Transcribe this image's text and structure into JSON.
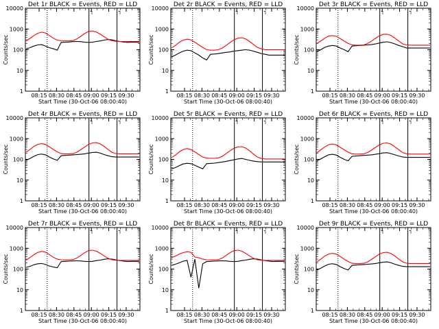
{
  "chart_data": [
    {
      "type": "line",
      "title": "Det 1r BLACK = Events, RED = LLD",
      "xlabel": "Start Time (30-Oct-06 08:00:40)",
      "ylabel": "Counts/sec",
      "yscale": "log",
      "ylim": [
        1,
        10000
      ],
      "yticks": [
        "1",
        "10",
        "100",
        "1000",
        "10000"
      ],
      "xticks": [
        "08:15",
        "08:30",
        "08:45",
        "09:00",
        "09:15",
        "09:30"
      ],
      "series": [
        {
          "name": "Events",
          "color": "#000000",
          "values": [
            110,
            125,
            150,
            170,
            175,
            150,
            125,
            110,
            95,
            225,
            230,
            235,
            245,
            250,
            245,
            230,
            225,
            230,
            250,
            265,
            290,
            310,
            300,
            270,
            250,
            235,
            225,
            230,
            230,
            230
          ]
        },
        {
          "name": "LLD",
          "color": "#ff0000",
          "values": [
            260,
            350,
            480,
            620,
            700,
            640,
            480,
            360,
            290,
            270,
            265,
            265,
            275,
            330,
            440,
            600,
            760,
            800,
            720,
            560,
            420,
            320,
            270,
            255,
            250,
            250,
            250,
            250,
            250,
            250
          ]
        }
      ]
    },
    {
      "type": "line",
      "title": "Det 2r BLACK = Events, RED = LLD",
      "xlabel": "Start Time (30-Oct-06 08:00:40)",
      "ylabel": "Counts/sec",
      "yscale": "log",
      "ylim": [
        1,
        10000
      ],
      "yticks": [
        "1",
        "10",
        "100",
        "1000",
        "10000"
      ],
      "xticks": [
        "08:15",
        "08:30",
        "08:45",
        "09:00",
        "09:15",
        "09:30"
      ],
      "series": [
        {
          "name": "Events",
          "color": "#000000",
          "values": [
            45,
            55,
            70,
            85,
            95,
            90,
            70,
            55,
            40,
            32,
            60,
            62,
            65,
            70,
            75,
            78,
            85,
            90,
            95,
            100,
            95,
            85,
            75,
            65,
            60,
            55,
            55,
            55,
            55,
            55
          ]
        },
        {
          "name": "LLD",
          "color": "#ff0000",
          "values": [
            120,
            160,
            230,
            290,
            320,
            300,
            230,
            170,
            130,
            100,
            95,
            95,
            100,
            120,
            160,
            220,
            300,
            360,
            380,
            330,
            250,
            180,
            130,
            110,
            100,
            100,
            100,
            100,
            100,
            100
          ]
        }
      ]
    },
    {
      "type": "line",
      "title": "Det 3r BLACK = Events, RED = LLD",
      "xlabel": "Start Time (30-Oct-06 08:00:40)",
      "ylabel": "Counts/sec",
      "yscale": "log",
      "ylim": [
        1,
        10000
      ],
      "yticks": [
        "1",
        "10",
        "100",
        "1000",
        "10000"
      ],
      "xticks": [
        "08:15",
        "08:30",
        "08:45",
        "09:00",
        "09:15",
        "09:30"
      ],
      "series": [
        {
          "name": "Events",
          "color": "#000000",
          "values": [
            80,
            100,
            130,
            150,
            160,
            150,
            120,
            100,
            80,
            150,
            155,
            160,
            165,
            170,
            175,
            190,
            210,
            230,
            240,
            220,
            190,
            160,
            140,
            120,
            120,
            120,
            120,
            120,
            120,
            120
          ]
        },
        {
          "name": "LLD",
          "color": "#ff0000",
          "values": [
            200,
            260,
            360,
            450,
            480,
            440,
            340,
            260,
            200,
            170,
            165,
            165,
            170,
            200,
            260,
            350,
            470,
            550,
            560,
            480,
            360,
            260,
            190,
            170,
            165,
            165,
            165,
            165,
            165,
            165
          ]
        }
      ]
    },
    {
      "type": "line",
      "title": "Det 4r BLACK = Events, RED = LLD",
      "xlabel": "Start Time (30-Oct-06 08:00:40)",
      "ylabel": "Counts/sec",
      "yscale": "log",
      "ylim": [
        1,
        10000
      ],
      "yticks": [
        "1",
        "10",
        "100",
        "1000",
        "10000"
      ],
      "xticks": [
        "08:15",
        "08:30",
        "08:45",
        "09:00",
        "09:15",
        "09:30"
      ],
      "series": [
        {
          "name": "Events",
          "color": "#000000",
          "values": [
            90,
            110,
            140,
            170,
            180,
            165,
            130,
            105,
            90,
            150,
            155,
            160,
            165,
            170,
            175,
            185,
            200,
            215,
            220,
            200,
            170,
            150,
            135,
            130,
            130,
            130,
            130,
            130,
            130,
            130
          ]
        },
        {
          "name": "LLD",
          "color": "#ff0000",
          "values": [
            220,
            300,
            420,
            530,
            570,
            520,
            400,
            300,
            230,
            190,
            185,
            185,
            190,
            220,
            290,
            390,
            520,
            620,
            640,
            560,
            420,
            300,
            220,
            190,
            185,
            185,
            185,
            185,
            185,
            185
          ]
        }
      ]
    },
    {
      "type": "line",
      "title": "Det 5r BLACK = Events, RED = LLD",
      "xlabel": "Start Time (30-Oct-06 08:00:40)",
      "ylabel": "Counts/sec",
      "yscale": "log",
      "ylim": [
        1,
        10000
      ],
      "yticks": [
        "1",
        "10",
        "100",
        "1000",
        "10000"
      ],
      "xticks": [
        "08:15",
        "08:30",
        "08:45",
        "09:00",
        "09:15",
        "09:30"
      ],
      "series": [
        {
          "name": "Events",
          "color": "#000000",
          "values": [
            35,
            40,
            50,
            60,
            65,
            62,
            52,
            42,
            35,
            62,
            64,
            66,
            70,
            75,
            80,
            88,
            95,
            105,
            110,
            100,
            90,
            82,
            78,
            75,
            75,
            75,
            75,
            75,
            75,
            75
          ]
        },
        {
          "name": "LLD",
          "color": "#ff0000",
          "values": [
            120,
            160,
            230,
            300,
            330,
            300,
            230,
            170,
            130,
            115,
            112,
            112,
            118,
            140,
            190,
            260,
            340,
            400,
            410,
            350,
            260,
            180,
            130,
            110,
            105,
            105,
            105,
            105,
            105,
            105
          ]
        }
      ]
    },
    {
      "type": "line",
      "title": "Det 6r BLACK = Events, RED = LLD",
      "xlabel": "Start Time (30-Oct-06 08:00:40)",
      "ylabel": "Counts/sec",
      "yscale": "log",
      "ylim": [
        1,
        10000
      ],
      "yticks": [
        "1",
        "10",
        "100",
        "1000",
        "10000"
      ],
      "xticks": [
        "08:15",
        "08:30",
        "08:45",
        "09:00",
        "09:15",
        "09:30"
      ],
      "series": [
        {
          "name": "Events",
          "color": "#000000",
          "values": [
            85,
            105,
            135,
            165,
            175,
            160,
            125,
            100,
            85,
            140,
            145,
            150,
            155,
            160,
            165,
            175,
            190,
            205,
            210,
            190,
            165,
            145,
            130,
            125,
            125,
            125,
            125,
            125,
            125,
            125
          ]
        },
        {
          "name": "LLD",
          "color": "#ff0000",
          "values": [
            210,
            290,
            400,
            510,
            550,
            500,
            380,
            290,
            220,
            185,
            180,
            180,
            185,
            215,
            280,
            380,
            500,
            600,
            620,
            540,
            400,
            290,
            210,
            185,
            180,
            180,
            180,
            180,
            180,
            180
          ]
        }
      ]
    },
    {
      "type": "line",
      "title": "Det 7r BLACK = Events, RED = LLD",
      "xlabel": "Start Time (30-Oct-06 08:00:40)",
      "ylabel": "Counts/sec",
      "yscale": "log",
      "ylim": [
        1,
        10000
      ],
      "yticks": [
        "1",
        "10",
        "100",
        "1000",
        "10000"
      ],
      "xticks": [
        "08:15",
        "08:30",
        "08:45",
        "09:00",
        "09:15",
        "09:30"
      ],
      "series": [
        {
          "name": "Events",
          "color": "#000000",
          "values": [
            120,
            135,
            160,
            180,
            185,
            165,
            140,
            125,
            115,
            230,
            235,
            240,
            245,
            250,
            245,
            235,
            230,
            235,
            255,
            270,
            295,
            310,
            300,
            275,
            255,
            240,
            230,
            235,
            235,
            235
          ]
        },
        {
          "name": "LLD",
          "color": "#ff0000",
          "values": [
            270,
            360,
            490,
            630,
            710,
            650,
            490,
            370,
            300,
            280,
            275,
            275,
            285,
            340,
            450,
            610,
            770,
            810,
            730,
            570,
            430,
            330,
            280,
            265,
            260,
            260,
            260,
            260,
            260,
            260
          ]
        }
      ]
    },
    {
      "type": "line",
      "title": "Det 8r BLACK = Events, RED = LLD",
      "xlabel": "Start Time (30-Oct-06 08:00:40)",
      "ylabel": "Counts/sec",
      "yscale": "log",
      "ylim": [
        1,
        10000
      ],
      "yticks": [
        "1",
        "10",
        "100",
        "1000",
        "10000"
      ],
      "xticks": [
        "08:15",
        "08:30",
        "08:45",
        "09:00",
        "09:15",
        "09:30"
      ],
      "series": [
        {
          "name": "Events",
          "color": "#000000",
          "values": [
            150,
            170,
            200,
            240,
            260,
            40,
            300,
            12,
            180,
            230,
            235,
            240,
            245,
            250,
            245,
            235,
            230,
            235,
            255,
            270,
            295,
            310,
            300,
            275,
            255,
            240,
            230,
            235,
            235,
            235
          ]
        },
        {
          "name": "LLD",
          "color": "#ff0000",
          "values": [
            350,
            420,
            520,
            620,
            680,
            640,
            380,
            350,
            300,
            280,
            275,
            275,
            285,
            340,
            450,
            610,
            770,
            810,
            730,
            570,
            430,
            330,
            280,
            265,
            260,
            260,
            260,
            260,
            260,
            260
          ]
        }
      ]
    },
    {
      "type": "line",
      "title": "Det 9r BLACK = Events, RED = LLD",
      "xlabel": "Start Time (30-Oct-06 08:00:40)",
      "ylabel": "Counts/sec",
      "yscale": "log",
      "ylim": [
        1,
        10000
      ],
      "yticks": [
        "1",
        "10",
        "100",
        "1000",
        "10000"
      ],
      "xticks": [
        "08:15",
        "08:30",
        "08:45",
        "09:00",
        "09:15",
        "09:30"
      ],
      "series": [
        {
          "name": "Events",
          "color": "#000000",
          "values": [
            90,
            110,
            140,
            170,
            180,
            165,
            130,
            105,
            90,
            150,
            155,
            160,
            165,
            170,
            175,
            185,
            200,
            215,
            220,
            200,
            170,
            150,
            135,
            130,
            130,
            130,
            130,
            130,
            130,
            130
          ]
        },
        {
          "name": "LLD",
          "color": "#ff0000",
          "values": [
            220,
            300,
            420,
            530,
            570,
            520,
            400,
            300,
            230,
            190,
            185,
            185,
            190,
            220,
            290,
            390,
            520,
            620,
            640,
            560,
            420,
            300,
            220,
            190,
            185,
            185,
            185,
            185,
            185,
            185
          ]
        }
      ]
    }
  ]
}
